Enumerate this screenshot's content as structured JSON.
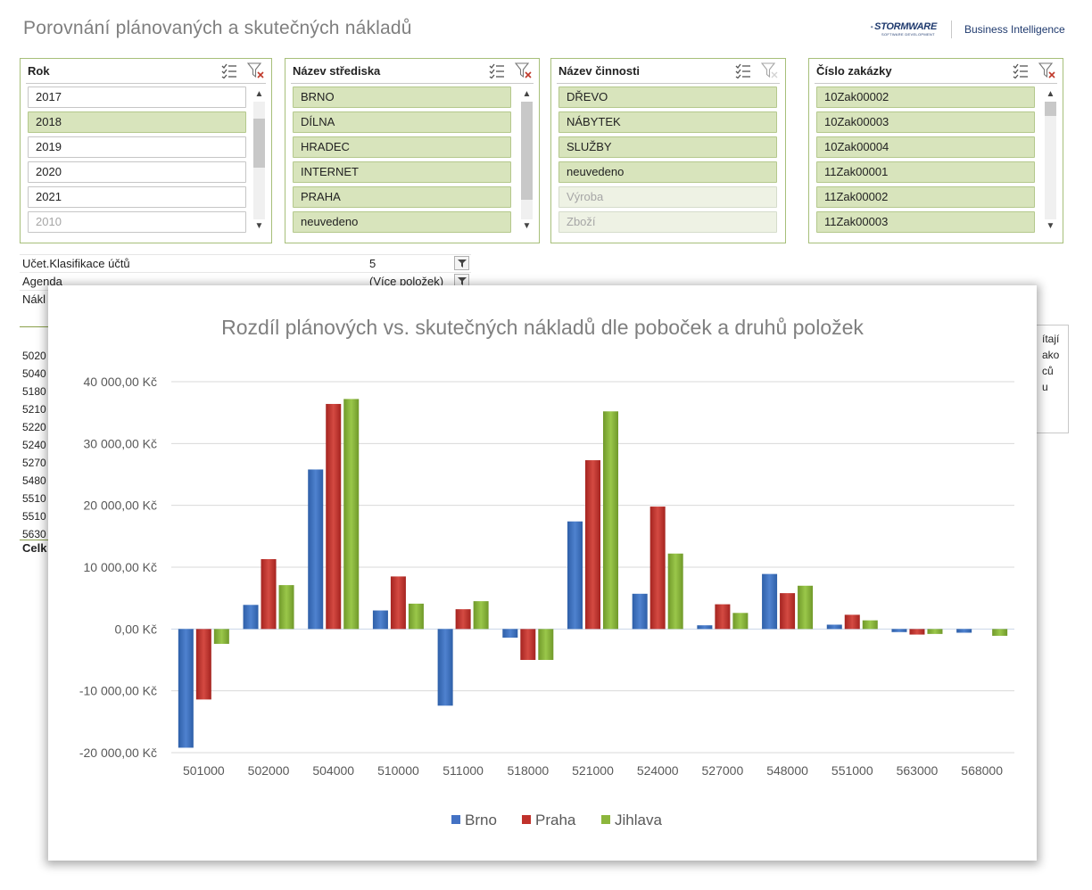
{
  "page": {
    "title": "Porovnání plánovaných a skutečných nákladů"
  },
  "brand": {
    "logo_text": "STORMWARE",
    "logo_subtext": "SOFTWARE DEVELOPMENT",
    "product": "Business Intelligence"
  },
  "slicers": [
    {
      "title": "Rok",
      "items": [
        {
          "label": "2017",
          "state": "normal"
        },
        {
          "label": "2018",
          "state": "selected"
        },
        {
          "label": "2019",
          "state": "normal"
        },
        {
          "label": "2020",
          "state": "normal"
        },
        {
          "label": "2021",
          "state": "normal"
        },
        {
          "label": "2010",
          "state": "nodata"
        }
      ]
    },
    {
      "title": "Název střediska",
      "items": [
        {
          "label": "BRNO",
          "state": "selected"
        },
        {
          "label": "DÍLNA",
          "state": "selected"
        },
        {
          "label": "HRADEC",
          "state": "selected"
        },
        {
          "label": "INTERNET",
          "state": "selected"
        },
        {
          "label": "PRAHA",
          "state": "selected"
        },
        {
          "label": "neuvedeno",
          "state": "selected"
        }
      ]
    },
    {
      "title": "Název činnosti",
      "items": [
        {
          "label": "DŘEVO",
          "state": "selected"
        },
        {
          "label": "NÁBYTEK",
          "state": "selected"
        },
        {
          "label": "SLUŽBY",
          "state": "selected"
        },
        {
          "label": "neuvedeno",
          "state": "selected"
        },
        {
          "label": "Výroba",
          "state": "nodata-sel"
        },
        {
          "label": "Zboží",
          "state": "nodata-sel"
        }
      ]
    },
    {
      "title": "Číslo zakázky",
      "items": [
        {
          "label": "10Zak00002",
          "state": "selected"
        },
        {
          "label": "10Zak00003",
          "state": "selected"
        },
        {
          "label": "10Zak00004",
          "state": "selected"
        },
        {
          "label": "11Zak00001",
          "state": "selected"
        },
        {
          "label": "11Zak00002",
          "state": "selected"
        },
        {
          "label": "11Zak00003",
          "state": "selected"
        }
      ]
    }
  ],
  "filters": [
    {
      "label": "Učet.Klasifikace účtů",
      "value": "5"
    },
    {
      "label": "Agenda",
      "value": "(Více položek)"
    },
    {
      "label": "Nákl",
      "value": ""
    }
  ],
  "background_codes": [
    "5020",
    "5040",
    "5180",
    "5210",
    "5220",
    "5240",
    "5270",
    "5480",
    "5510",
    "5510",
    "5630"
  ],
  "background_total": "Celk",
  "background_note": [
    "ítají",
    "ako",
    "ců",
    "u"
  ],
  "colors": {
    "brno": "#4472c4",
    "praha": "#c0312b",
    "jihlava": "#8cb63c",
    "accent_green": "#a7bf7a",
    "selected_fill": "#d8e4bc"
  },
  "chart_data": {
    "type": "bar",
    "title": "Rozdíl plánových vs. skutečných nákladů dle poboček a druhů položek",
    "categories": [
      "501000",
      "502000",
      "504000",
      "510000",
      "511000",
      "518000",
      "521000",
      "524000",
      "527000",
      "548000",
      "551000",
      "563000",
      "568000"
    ],
    "series": [
      {
        "name": "Brno",
        "color": "#4472c4",
        "values": [
          -19200,
          3900,
          25800,
          3000,
          -12400,
          -1400,
          17400,
          5700,
          600,
          8900,
          700,
          -500,
          -600
        ]
      },
      {
        "name": "Praha",
        "color": "#c0312b",
        "values": [
          -11400,
          11300,
          36400,
          8500,
          3200,
          -5000,
          27300,
          19800,
          4000,
          5800,
          2300,
          -900,
          0
        ]
      },
      {
        "name": "Jihlava",
        "color": "#8cb63c",
        "values": [
          -2400,
          7100,
          37200,
          4100,
          4500,
          -5000,
          35200,
          12200,
          2600,
          7000,
          1400,
          -800,
          -1100
        ]
      }
    ],
    "ylim": [
      -20000,
      40000
    ],
    "y_ticks": [
      {
        "value": 40000,
        "label": "40 000,00 Kč"
      },
      {
        "value": 30000,
        "label": "30 000,00 Kč"
      },
      {
        "value": 20000,
        "label": "20 000,00 Kč"
      },
      {
        "value": 10000,
        "label": "10 000,00 Kč"
      },
      {
        "value": 0,
        "label": "0,00 Kč"
      },
      {
        "value": -10000,
        "label": "-10 000,00 Kč"
      },
      {
        "value": -20000,
        "label": "-20 000,00 Kč"
      }
    ],
    "grid": true,
    "legend_position": "bottom"
  }
}
